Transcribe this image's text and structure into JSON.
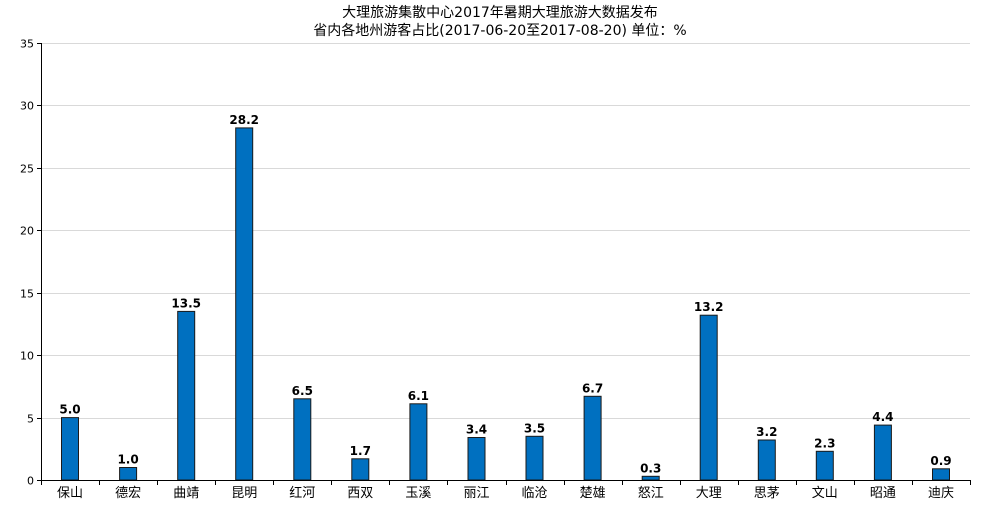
{
  "chart_data": {
    "type": "bar",
    "title": "大理旅游集散中心2017年暑期大理旅游大数据发布",
    "subtitle": "省内各地州游客占比(2017-06-20至2017-08-20) 单位：%",
    "xlabel": "",
    "ylabel": "",
    "categories": [
      "保山",
      "德宏",
      "曲靖",
      "昆明",
      "红河",
      "西双",
      "玉溪",
      "丽江",
      "临沧",
      "楚雄",
      "怒江",
      "大理",
      "思茅",
      "文山",
      "昭通",
      "迪庆"
    ],
    "values": [
      5.0,
      1.0,
      13.5,
      28.2,
      6.5,
      1.7,
      6.1,
      3.4,
      3.5,
      6.7,
      0.3,
      13.2,
      3.2,
      2.3,
      4.4,
      0.9
    ],
    "value_labels": [
      "5.0",
      "1.0",
      "13.5",
      "28.2",
      "6.5",
      "1.7",
      "6.1",
      "3.4",
      "3.5",
      "6.7",
      "0.3",
      "13.2",
      "3.2",
      "2.3",
      "4.4",
      "0.9"
    ],
    "ylim": [
      0,
      35
    ],
    "yticks": [
      0,
      5,
      10,
      15,
      20,
      25,
      30,
      35
    ],
    "ytick_labels": [
      "0",
      "5",
      "10",
      "15",
      "20",
      "25",
      "30",
      "35"
    ],
    "grid": true,
    "legend": "none",
    "bar_color": "#0070C0",
    "bar_edge_color": "#1a1a1a",
    "grid_color": "#d9d9d9"
  }
}
